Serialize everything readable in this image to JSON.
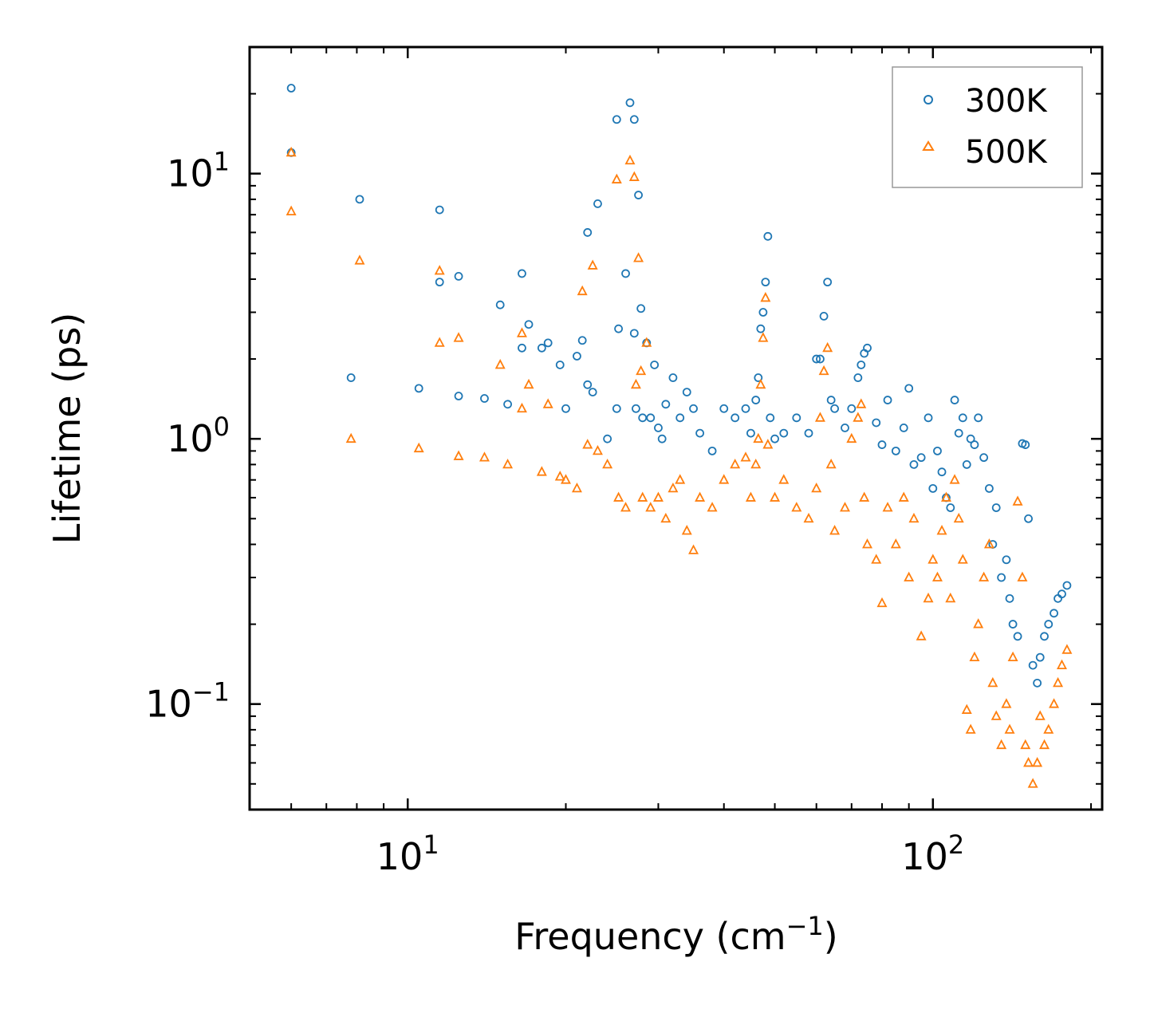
{
  "chart_data": {
    "type": "scatter",
    "xscale": "log",
    "yscale": "log",
    "xlim": [
      5,
      210
    ],
    "ylim": [
      0.04,
      30
    ],
    "xlabel": "Frequency (cm",
    "xlabel_sup": "−1",
    "xlabel_end": ")",
    "ylabel": "Lifetime (ps)",
    "xticks": [
      {
        "value": 10,
        "base": "10",
        "exp": "1"
      },
      {
        "value": 100,
        "base": "10",
        "exp": "2"
      }
    ],
    "yticks": [
      {
        "value": 0.1,
        "base": "10",
        "exp": "−1"
      },
      {
        "value": 1,
        "base": "10",
        "exp": "0"
      },
      {
        "value": 10,
        "base": "10",
        "exp": "1"
      }
    ],
    "legend_position": "top-right",
    "series": [
      {
        "name": "300K",
        "marker": "circle",
        "color": "#1f77b4",
        "x": [
          6.0,
          6.0,
          7.8,
          8.1,
          10.5,
          11.5,
          11.5,
          12.5,
          12.5,
          14.0,
          15.0,
          15.5,
          16.5,
          16.5,
          17.0,
          18.0,
          18.5,
          19.5,
          20.0,
          21.0,
          21.5,
          22.0,
          22.0,
          22.5,
          23.0,
          24.0,
          25.0,
          25.0,
          25.2,
          26.0,
          26.5,
          27.0,
          27.0,
          27.2,
          27.5,
          27.8,
          28.0,
          28.5,
          29.0,
          29.5,
          30.0,
          30.5,
          31.0,
          32.0,
          33.0,
          34.0,
          35.0,
          36.0,
          38.0,
          40.0,
          42.0,
          44.0,
          45.0,
          46.0,
          46.5,
          47.0,
          47.5,
          48.0,
          48.5,
          49.0,
          50.0,
          52.0,
          55.0,
          58.0,
          60.0,
          61.0,
          62.0,
          63.0,
          64.0,
          65.0,
          68.0,
          70.0,
          72.0,
          73.0,
          74.0,
          75.0,
          78.0,
          80.0,
          82.0,
          85.0,
          88.0,
          90.0,
          92.0,
          95.0,
          98.0,
          100.0,
          102.0,
          104.0,
          106.0,
          108.0,
          110.0,
          112.0,
          114.0,
          116.0,
          118.0,
          120.0,
          122.0,
          125.0,
          128.0,
          130.0,
          132.0,
          135.0,
          138.0,
          140.0,
          142.0,
          145.0,
          148.0,
          150.0,
          152.0,
          155.0,
          158.0,
          160.0,
          163.0,
          166.0,
          170.0,
          173.0,
          176.0,
          180.0
        ],
        "y": [
          21.0,
          12.0,
          1.7,
          8.0,
          1.55,
          7.3,
          3.9,
          4.1,
          1.45,
          1.42,
          3.2,
          1.35,
          4.2,
          2.2,
          2.7,
          2.2,
          2.3,
          1.9,
          1.3,
          2.05,
          2.35,
          6.0,
          1.6,
          1.5,
          7.7,
          1.0,
          16.0,
          1.3,
          2.6,
          4.2,
          18.5,
          16.0,
          2.5,
          1.3,
          8.3,
          3.1,
          1.2,
          2.3,
          1.2,
          1.9,
          1.1,
          1.0,
          1.35,
          1.7,
          1.2,
          1.5,
          1.3,
          1.05,
          0.9,
          1.3,
          1.2,
          1.3,
          1.05,
          1.4,
          1.7,
          2.6,
          3.0,
          3.9,
          5.8,
          1.2,
          1.0,
          1.05,
          1.2,
          1.05,
          2.0,
          2.0,
          2.9,
          3.9,
          1.4,
          1.3,
          1.1,
          1.3,
          1.7,
          1.9,
          2.1,
          2.2,
          1.15,
          0.95,
          1.4,
          0.9,
          1.1,
          1.55,
          0.8,
          0.85,
          1.2,
          0.65,
          0.9,
          0.75,
          0.6,
          0.55,
          1.4,
          1.05,
          1.2,
          0.8,
          1.0,
          0.95,
          1.2,
          0.85,
          0.65,
          0.4,
          0.55,
          0.3,
          0.35,
          0.25,
          0.2,
          0.18,
          0.96,
          0.95,
          0.5,
          0.14,
          0.12,
          0.15,
          0.18,
          0.2,
          0.22,
          0.25,
          0.26,
          0.28
        ]
      },
      {
        "name": "500K",
        "marker": "triangle",
        "color": "#ff7f0e",
        "x": [
          6.0,
          6.0,
          7.8,
          8.1,
          10.5,
          11.5,
          11.5,
          12.5,
          12.5,
          14.0,
          15.0,
          15.5,
          16.5,
          16.5,
          17.0,
          18.0,
          18.5,
          19.5,
          20.0,
          21.0,
          21.5,
          22.0,
          22.5,
          23.0,
          24.0,
          25.0,
          25.2,
          26.0,
          26.5,
          27.0,
          27.2,
          27.5,
          27.8,
          28.0,
          28.5,
          29.0,
          30.0,
          31.0,
          32.0,
          33.0,
          34.0,
          35.0,
          36.0,
          38.0,
          40.0,
          42.0,
          44.0,
          45.0,
          46.0,
          46.5,
          47.0,
          47.5,
          48.0,
          48.5,
          50.0,
          52.0,
          55.0,
          58.0,
          60.0,
          61.0,
          62.0,
          63.0,
          64.0,
          65.0,
          68.0,
          70.0,
          72.0,
          73.0,
          74.0,
          75.0,
          78.0,
          80.0,
          82.0,
          85.0,
          88.0,
          90.0,
          92.0,
          95.0,
          98.0,
          100.0,
          102.0,
          104.0,
          106.0,
          108.0,
          110.0,
          112.0,
          114.0,
          116.0,
          118.0,
          120.0,
          122.0,
          125.0,
          128.0,
          130.0,
          132.0,
          135.0,
          138.0,
          140.0,
          142.0,
          145.0,
          148.0,
          150.0,
          152.0,
          155.0,
          158.0,
          160.0,
          163.0,
          166.0,
          170.0,
          173.0,
          176.0,
          180.0
        ],
        "y": [
          12.0,
          7.2,
          1.0,
          4.7,
          0.92,
          4.3,
          2.3,
          2.4,
          0.86,
          0.85,
          1.9,
          0.8,
          2.5,
          1.3,
          1.6,
          0.75,
          1.35,
          0.72,
          0.7,
          0.65,
          3.6,
          0.95,
          4.5,
          0.9,
          0.8,
          9.5,
          0.6,
          0.55,
          11.2,
          9.7,
          1.6,
          4.8,
          1.8,
          0.6,
          2.3,
          0.55,
          0.6,
          0.5,
          0.65,
          0.7,
          0.45,
          0.38,
          0.6,
          0.55,
          0.7,
          0.8,
          0.85,
          0.6,
          0.8,
          1.0,
          1.6,
          2.4,
          3.4,
          0.95,
          0.6,
          0.7,
          0.55,
          0.5,
          0.65,
          1.2,
          1.8,
          2.2,
          0.8,
          0.45,
          0.55,
          1.0,
          1.2,
          1.35,
          0.6,
          0.4,
          0.35,
          0.24,
          0.55,
          0.4,
          0.6,
          0.3,
          0.5,
          0.18,
          0.25,
          0.35,
          0.3,
          0.45,
          0.6,
          0.25,
          0.7,
          0.5,
          0.35,
          0.095,
          0.08,
          0.15,
          0.2,
          0.3,
          0.4,
          0.12,
          0.09,
          0.07,
          0.1,
          0.08,
          0.15,
          0.58,
          0.3,
          0.07,
          0.06,
          0.05,
          0.06,
          0.09,
          0.07,
          0.08,
          0.1,
          0.12,
          0.14,
          0.16
        ]
      }
    ]
  }
}
